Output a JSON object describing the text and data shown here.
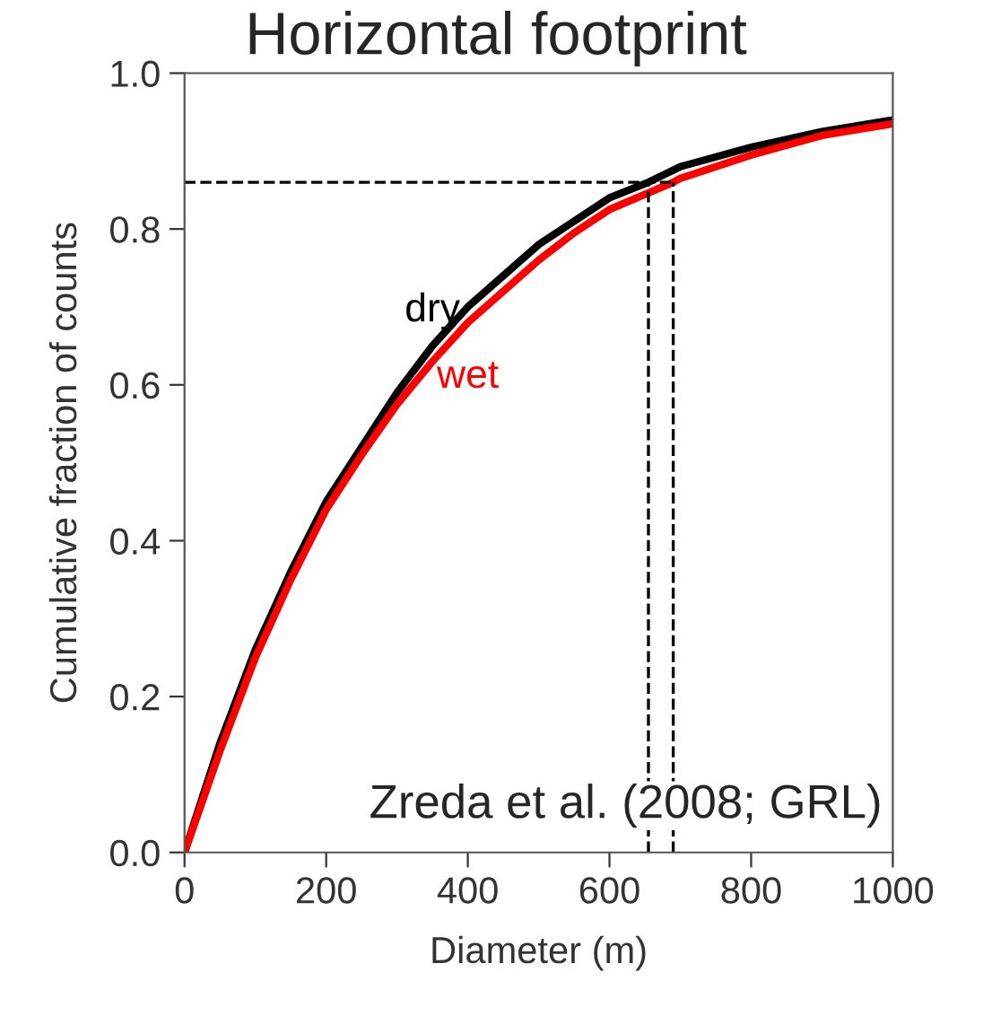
{
  "chart_data": {
    "type": "line",
    "title": "Horizontal footprint",
    "xlabel": "Diameter (m)",
    "ylabel": "Cumulative fraction of counts",
    "series": [
      {
        "name": "dry",
        "color": "#000000",
        "x": [
          0,
          25,
          50,
          100,
          150,
          200,
          250,
          300,
          350,
          400,
          450,
          500,
          550,
          600,
          655,
          700,
          800,
          900,
          1000
        ],
        "values": [
          0,
          0.07,
          0.14,
          0.26,
          0.36,
          0.45,
          0.52,
          0.59,
          0.65,
          0.7,
          0.74,
          0.78,
          0.81,
          0.84,
          0.86,
          0.88,
          0.905,
          0.925,
          0.94
        ]
      },
      {
        "name": "wet",
        "color": "#ff0000",
        "x": [
          0,
          25,
          50,
          100,
          150,
          200,
          250,
          300,
          350,
          400,
          450,
          500,
          550,
          600,
          690,
          700,
          800,
          900,
          1000
        ],
        "values": [
          0,
          0.065,
          0.13,
          0.25,
          0.35,
          0.44,
          0.51,
          0.575,
          0.63,
          0.68,
          0.72,
          0.76,
          0.795,
          0.825,
          0.86,
          0.865,
          0.895,
          0.92,
          0.935
        ]
      }
    ],
    "ref_lines": [
      {
        "axis": "y",
        "value": 0.86,
        "line_style": "dashed",
        "color": "#000000"
      },
      {
        "axis": "x",
        "value": 655,
        "line_style": "dashed",
        "color": "#000000"
      },
      {
        "axis": "x",
        "value": 690,
        "line_style": "dashed",
        "color": "#000000"
      }
    ],
    "annotations": [
      "Zreda et al. (2008; GRL)"
    ],
    "xlim": [
      0,
      1000
    ],
    "ylim": [
      0,
      1.0
    ],
    "xticks": [
      0,
      200,
      400,
      600,
      800,
      1000
    ],
    "yticks": [
      {
        "value": 0,
        "label": "0.0"
      },
      0.2,
      0.4,
      0.6,
      0.8,
      {
        "value": 1.0,
        "label": "1.0"
      }
    ],
    "grid": false,
    "legend": false,
    "marker": "none",
    "line_style": "solid"
  }
}
